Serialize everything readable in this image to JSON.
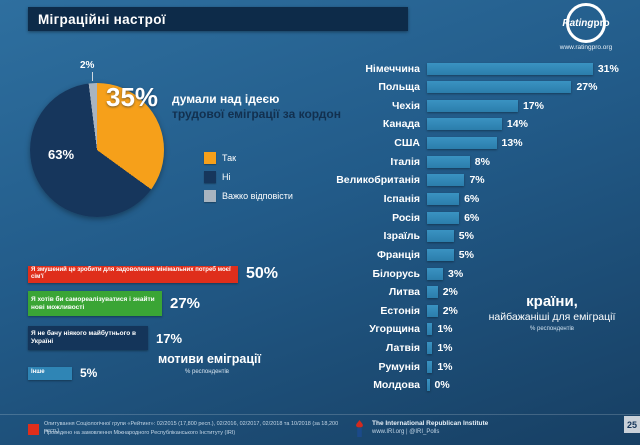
{
  "header": {
    "title": "Міграційні настрої",
    "logo_text_1": "Rating",
    "logo_text_2": "pro",
    "logo_url": "www.ratingpro.org"
  },
  "pie_section": {
    "big_value": "35%",
    "headline_white": "думали над ідеєю",
    "headline_navy": "трудової еміграції за кордон",
    "label_no": "63%",
    "label_hard": "2%",
    "legend": [
      {
        "label": "Так",
        "color": "#f6a01a"
      },
      {
        "label": "Ні",
        "color": "#16365c"
      },
      {
        "label": "Важко відповісти",
        "color": "#a8b4c0"
      }
    ]
  },
  "motives": {
    "title": "мотиви еміграції",
    "subtitle": "% респондентів",
    "items": [
      {
        "label": "Я змушений це зробити для задоволення мінімальних потреб моєї сім'ї",
        "value_label": "50%",
        "color": "#df2e1b"
      },
      {
        "label": "Я хотів би самореалізуватися і знайти нові можливості",
        "value_label": "27%",
        "color": "#3aa535"
      },
      {
        "label": "Я не бачу ніякого майбутнього в Україні",
        "value_label": "17%",
        "color": "#14355a"
      },
      {
        "label": "Інше",
        "value_label": "5%",
        "color": "#2f85b5"
      }
    ]
  },
  "countries": {
    "title_bold": "країни,",
    "title_rest": "найбажаніші для еміграції",
    "subtitle": "% респондентів",
    "bar_color": "#2f85b5",
    "items": [
      {
        "label": "Німеччина",
        "value": 31
      },
      {
        "label": "Польща",
        "value": 27
      },
      {
        "label": "Чехія",
        "value": 17
      },
      {
        "label": "Канада",
        "value": 14
      },
      {
        "label": "США",
        "value": 13
      },
      {
        "label": "Італія",
        "value": 8
      },
      {
        "label": "Великобританія",
        "value": 7
      },
      {
        "label": "Іспанія",
        "value": 6
      },
      {
        "label": "Росія",
        "value": 6
      },
      {
        "label": "Ізраїль",
        "value": 5
      },
      {
        "label": "Франція",
        "value": 5
      },
      {
        "label": "Білорусь",
        "value": 3
      },
      {
        "label": "Литва",
        "value": 2
      },
      {
        "label": "Естонія",
        "value": 2
      },
      {
        "label": "Угорщина",
        "value": 1
      },
      {
        "label": "Латвія",
        "value": 1
      },
      {
        "label": "Румунія",
        "value": 1
      },
      {
        "label": "Молдова",
        "value": 0
      }
    ]
  },
  "footer": {
    "note_line1": "Опитування Соціологічної групи «Рейтинг»: 02/2015 (17,800 респ.), 02/2016, 02/2017, 02/2018 та 10/2018 (за 18,200 респ.)",
    "note_line2": "Проведено на замовлення Міжнародного Республіканського Інституту (IRI)",
    "iri_name": "The International Republican Institute",
    "iri_links": "www.IRI.org | @IRI_Polls",
    "page_number": "25"
  },
  "chart_data": [
    {
      "type": "pie",
      "title": "Міграційні настрої — думали над ідеєю трудової еміграції за кордон",
      "labels": [
        "Так",
        "Ні",
        "Важко відповісти"
      ],
      "values": [
        35,
        63,
        2
      ],
      "colors": [
        "#f6a01a",
        "#16365c",
        "#a8b4c0"
      ],
      "legend_position": "right"
    },
    {
      "type": "bar",
      "orientation": "horizontal",
      "title": "країни, найбажаніші для еміграції",
      "ylabel": "% респондентів",
      "categories": [
        "Німеччина",
        "Польща",
        "Чехія",
        "Канада",
        "США",
        "Італія",
        "Великобританія",
        "Іспанія",
        "Росія",
        "Ізраїль",
        "Франція",
        "Білорусь",
        "Литва",
        "Естонія",
        "Угорщина",
        "Латвія",
        "Румунія",
        "Молдова"
      ],
      "values": [
        31,
        27,
        17,
        14,
        13,
        8,
        7,
        6,
        6,
        5,
        5,
        3,
        2,
        2,
        1,
        1,
        1,
        0
      ],
      "xlim": [
        0,
        35
      ],
      "grid": false
    },
    {
      "type": "bar",
      "orientation": "horizontal",
      "title": "мотиви еміграції",
      "ylabel": "% респондентів",
      "categories": [
        "Я змушений це зробити для задоволення мінімальних потреб моєї сім'ї",
        "Я хотів би самореалізуватися і знайти нові можливості",
        "Я не бачу ніякого майбутнього в Україні",
        "Інше"
      ],
      "values": [
        50,
        27,
        17,
        5
      ],
      "colors": [
        "#df2e1b",
        "#3aa535",
        "#14355a",
        "#2f85b5"
      ],
      "grid": false
    }
  ]
}
